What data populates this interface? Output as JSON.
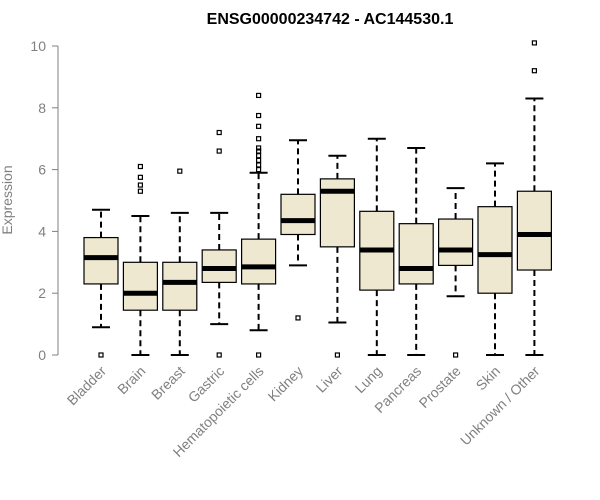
{
  "chart_data": {
    "type": "box",
    "title": "ENSG00000234742 - AC144530.1",
    "xlabel": "",
    "ylabel": "Expression",
    "ylim": [
      0,
      10
    ],
    "yticks": [
      0,
      2,
      4,
      6,
      8,
      10
    ],
    "box_fill": "#EEE8D0",
    "box_stroke": "#000000",
    "categories": [
      "Bladder",
      "Brain",
      "Breast",
      "Gastric",
      "Hematopoietic cells",
      "Kidney",
      "Liver",
      "Lung",
      "Pancreas",
      "Prostate",
      "Skin",
      "Unknown / Other"
    ],
    "boxes": [
      {
        "min": 0.9,
        "q1": 2.3,
        "median": 3.15,
        "q3": 3.8,
        "max": 4.7,
        "outliers": [
          0.0
        ]
      },
      {
        "min": 0.0,
        "q1": 1.45,
        "median": 2.0,
        "q3": 3.0,
        "max": 4.5,
        "outliers": [
          5.3,
          5.5,
          5.75,
          6.1
        ]
      },
      {
        "min": 0.0,
        "q1": 1.45,
        "median": 2.35,
        "q3": 3.0,
        "max": 4.6,
        "outliers": [
          5.95
        ]
      },
      {
        "min": 1.0,
        "q1": 2.35,
        "median": 2.8,
        "q3": 3.4,
        "max": 4.6,
        "outliers": [
          0.0,
          6.6,
          7.2
        ]
      },
      {
        "min": 0.8,
        "q1": 2.3,
        "median": 2.85,
        "q3": 3.75,
        "max": 5.9,
        "outliers": [
          0.0,
          6.0,
          6.15,
          6.3,
          6.45,
          6.6,
          6.7,
          7.0,
          7.4,
          7.75,
          8.4
        ]
      },
      {
        "min": 2.9,
        "q1": 3.9,
        "median": 4.35,
        "q3": 5.2,
        "max": 6.95,
        "outliers": [
          1.2
        ]
      },
      {
        "min": 1.05,
        "q1": 3.5,
        "median": 5.3,
        "q3": 5.7,
        "max": 6.45,
        "outliers": [
          0.0
        ]
      },
      {
        "min": 0.0,
        "q1": 2.1,
        "median": 3.4,
        "q3": 4.65,
        "max": 7.0,
        "outliers": []
      },
      {
        "min": 0.0,
        "q1": 2.3,
        "median": 2.8,
        "q3": 4.25,
        "max": 6.7,
        "outliers": []
      },
      {
        "min": 1.9,
        "q1": 2.9,
        "median": 3.4,
        "q3": 4.4,
        "max": 5.4,
        "outliers": [
          0.0
        ]
      },
      {
        "min": 0.0,
        "q1": 2.0,
        "median": 3.25,
        "q3": 4.8,
        "max": 6.2,
        "outliers": []
      },
      {
        "min": 0.0,
        "q1": 2.75,
        "median": 3.9,
        "q3": 5.3,
        "max": 8.3,
        "outliers": [
          9.2,
          10.1
        ]
      }
    ]
  }
}
